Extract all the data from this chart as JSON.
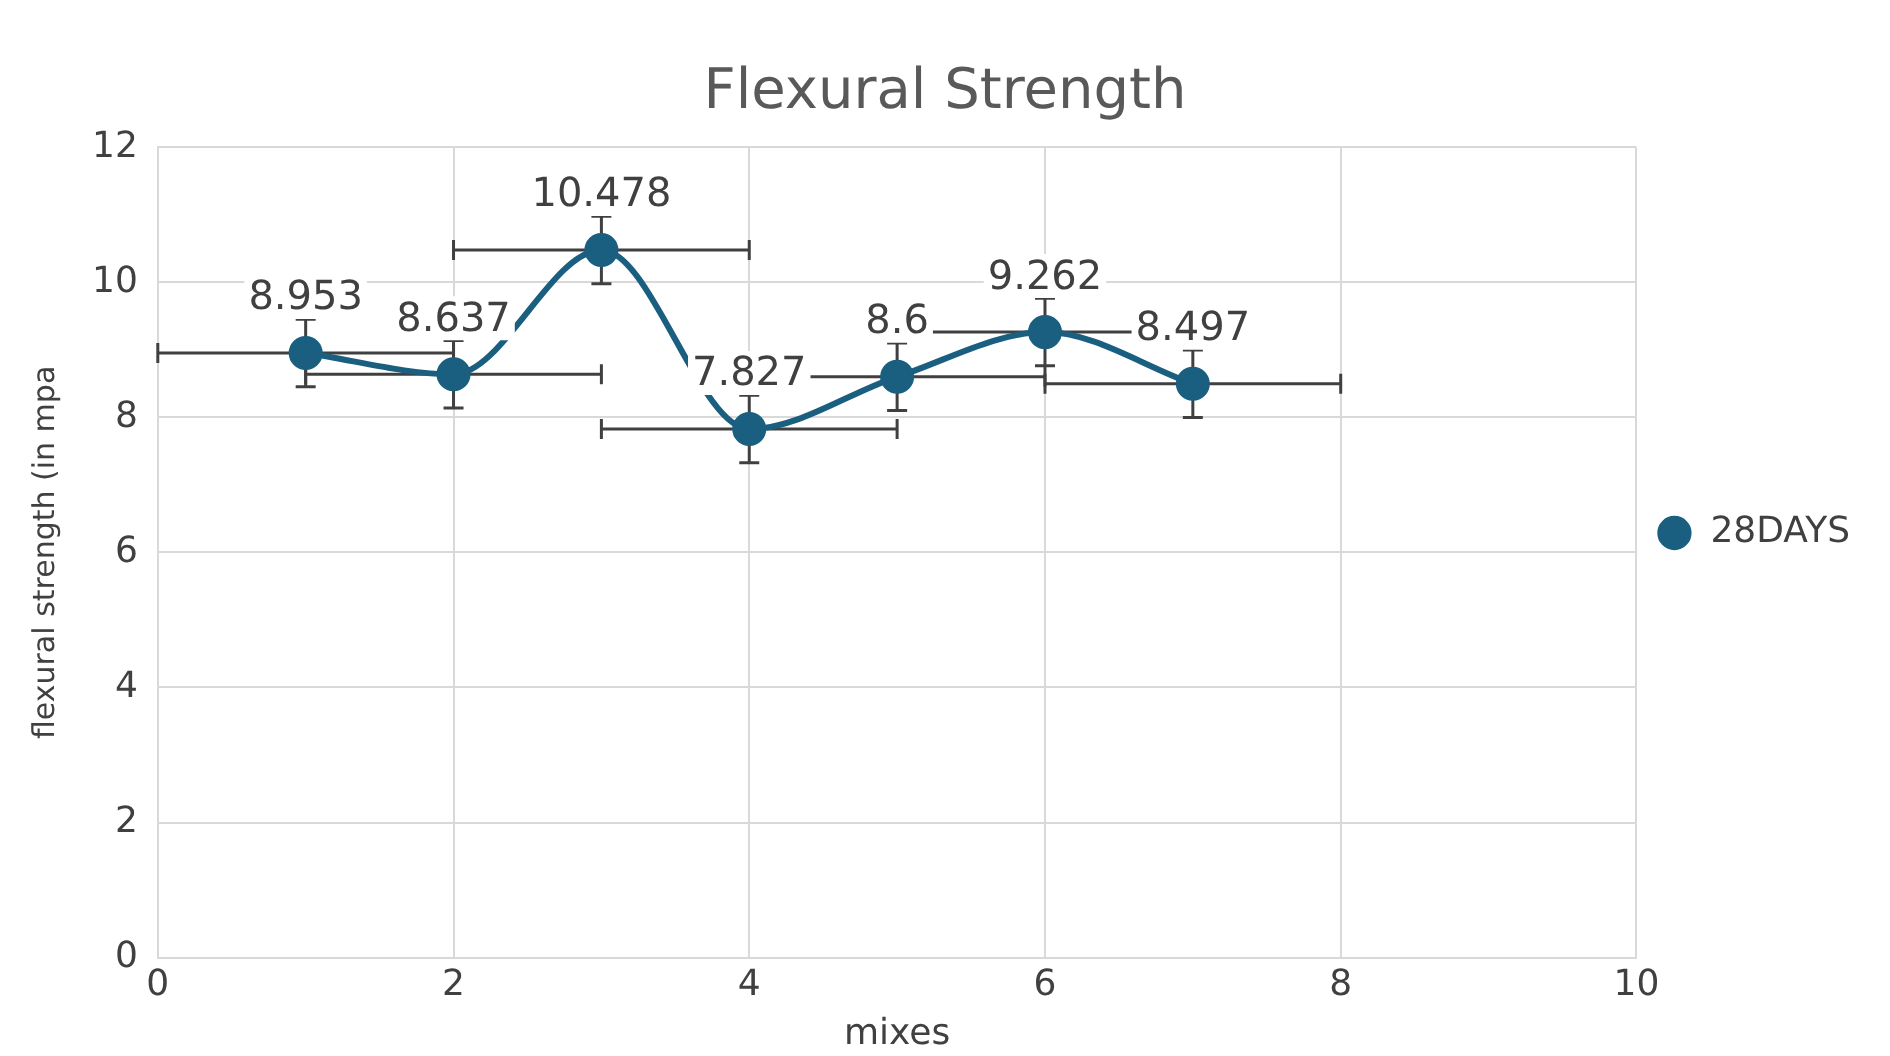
{
  "chart_data": {
    "type": "line",
    "title": "Flexural Strength",
    "xlabel": "mixes",
    "ylabel": "flexural strength (in mpa",
    "x": [
      1,
      2,
      3,
      4,
      5,
      6,
      7
    ],
    "series": [
      {
        "name": "28DAYS",
        "color": "#1a5e80",
        "values": [
          8.953,
          8.637,
          10.478,
          7.827,
          8.6,
          9.262,
          8.497
        ],
        "errors": [
          0.5,
          0.5,
          0.5,
          0.5,
          0.5,
          0.5,
          0.5
        ],
        "xerrors": [
          1,
          1,
          1,
          1,
          1,
          1,
          1
        ]
      }
    ],
    "xlim": [
      0,
      10
    ],
    "xticks": [
      0,
      2,
      4,
      6,
      8,
      10
    ],
    "ylim": [
      0,
      12
    ],
    "yticks": [
      0,
      2,
      4,
      6,
      8,
      10,
      12
    ],
    "grid": true,
    "legend": "right",
    "marker": "circle",
    "line_style": "solid",
    "data_labels": true
  }
}
